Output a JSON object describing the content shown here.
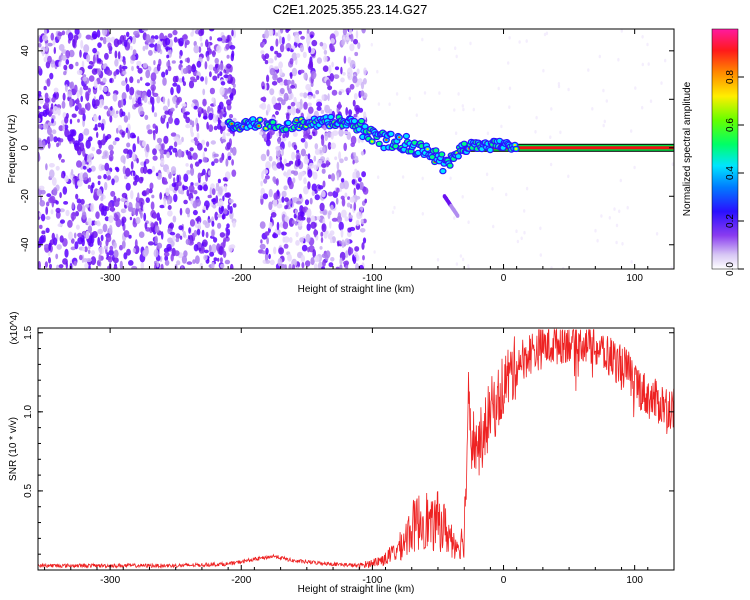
{
  "chart_data": [
    {
      "type": "heatmap",
      "title": "C2E1.2025.355.23.14.G27",
      "xlabel": "Height of straight line (km)",
      "ylabel": "Frequency (Hz)",
      "xlim": [
        -355,
        130
      ],
      "ylim": [
        -50,
        49
      ],
      "xticks": [
        -300,
        -200,
        -100,
        0,
        100
      ],
      "yticks": [
        -40,
        -20,
        0,
        20,
        40
      ],
      "colorbar": {
        "label": "Normalized spectral amplitude",
        "range": [
          0,
          1
        ],
        "ticks": [
          "0.0",
          "0.2",
          "0.4",
          "0.6",
          "0.8"
        ],
        "tick_values": [
          0.0,
          0.2,
          0.4,
          0.6,
          0.8
        ],
        "colormap": "rainbow (white-violet-blue-cyan-green-yellow-red-magenta)"
      },
      "features": {
        "background_noise_x_ranges": [
          [
            -355,
            -205
          ],
          [
            -185,
            -105
          ]
        ],
        "signal_track": [
          {
            "x": -210,
            "y": 9
          },
          {
            "x": -190,
            "y": 10
          },
          {
            "x": -170,
            "y": 9
          },
          {
            "x": -150,
            "y": 10
          },
          {
            "x": -130,
            "y": 11
          },
          {
            "x": -115,
            "y": 10
          },
          {
            "x": -100,
            "y": 6
          },
          {
            "x": -90,
            "y": 3
          },
          {
            "x": -80,
            "y": 2
          },
          {
            "x": -70,
            "y": 1
          },
          {
            "x": -60,
            "y": -1
          },
          {
            "x": -50,
            "y": -4
          },
          {
            "x": -45,
            "y": -7
          },
          {
            "x": -40,
            "y": -4
          },
          {
            "x": -35,
            "y": -2
          },
          {
            "x": -30,
            "y": 0
          },
          {
            "x": -20,
            "y": 1
          },
          {
            "x": -5,
            "y": 1
          },
          {
            "x": 10,
            "y": 0
          }
        ],
        "branch": [
          {
            "x": -45,
            "y": -20
          },
          {
            "x": -35,
            "y": -28
          }
        ],
        "steady_line": {
          "x_start": -30,
          "x_end": 130,
          "y": 0
        }
      }
    },
    {
      "type": "line",
      "xlabel": "Height of straight line (km)",
      "ylabel": "SNR (10 * v/v)",
      "y_multiplier": "(x10^4)",
      "xlim": [
        -355,
        130
      ],
      "ylim": [
        0,
        1.53
      ],
      "xticks": [
        -300,
        -200,
        -100,
        0,
        100
      ],
      "yticks": [
        0.5,
        1.0,
        1.5
      ],
      "ytick_labels": [
        "0.5",
        "1.0",
        "1.5"
      ],
      "series": [
        {
          "name": "SNR",
          "color": "#ee2222",
          "x": [
            -355,
            -300,
            -250,
            -210,
            -190,
            -175,
            -160,
            -130,
            -110,
            -100,
            -90,
            -80,
            -70,
            -60,
            -55,
            -50,
            -45,
            -40,
            -35,
            -30,
            -27,
            -25,
            -20,
            -15,
            -10,
            -5,
            0,
            10,
            20,
            30,
            40,
            50,
            60,
            70,
            80,
            90,
            95,
            100,
            110,
            120,
            130
          ],
          "values": [
            0.03,
            0.03,
            0.03,
            0.04,
            0.07,
            0.09,
            0.06,
            0.04,
            0.03,
            0.05,
            0.08,
            0.15,
            0.3,
            0.38,
            0.3,
            0.35,
            0.3,
            0.22,
            0.18,
            0.22,
            1.15,
            0.9,
            0.82,
            0.9,
            1.05,
            1.1,
            1.22,
            1.33,
            1.4,
            1.44,
            1.46,
            1.48,
            1.48,
            1.44,
            1.38,
            1.33,
            1.28,
            1.22,
            1.12,
            1.08,
            1.05
          ]
        }
      ]
    }
  ]
}
